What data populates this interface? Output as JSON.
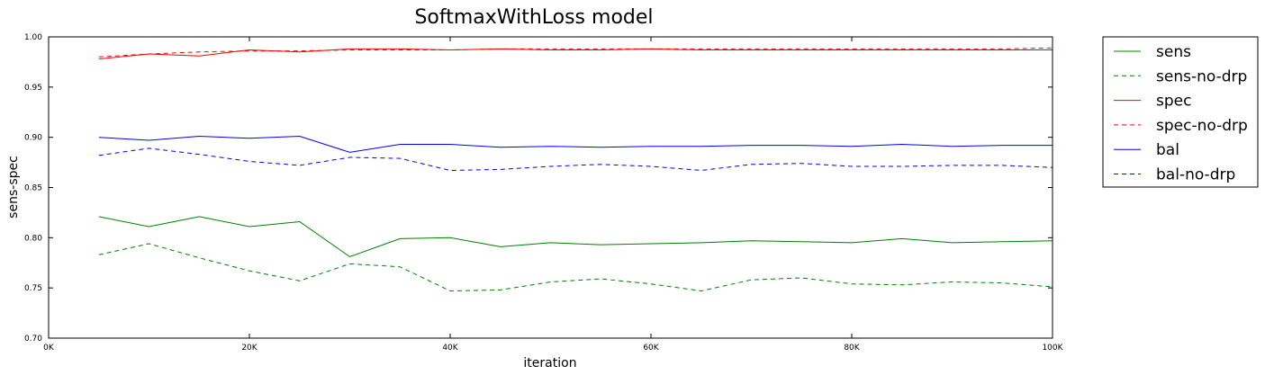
{
  "chart_data": {
    "type": "line",
    "title": "SoftmaxWithLoss model",
    "xlabel": "iteration",
    "ylabel": "sens-spec",
    "xlim": [
      0,
      100000
    ],
    "ylim": [
      0.7,
      1.0
    ],
    "x_ticks": [
      0,
      20000,
      40000,
      60000,
      80000,
      100000
    ],
    "x_tick_labels": [
      "0K",
      "20K",
      "40K",
      "60K",
      "80K",
      "100K"
    ],
    "y_ticks": [
      0.7,
      0.75,
      0.8,
      0.85,
      0.9,
      0.95,
      1.0
    ],
    "y_tick_labels": [
      "0.70",
      "0.75",
      "0.80",
      "0.85",
      "0.90",
      "0.95",
      "1.00"
    ],
    "grid": false,
    "legend_position": "outside-right",
    "x": [
      5000,
      10000,
      15000,
      20000,
      25000,
      30000,
      35000,
      40000,
      45000,
      50000,
      55000,
      60000,
      65000,
      70000,
      75000,
      80000,
      85000,
      90000,
      95000,
      100000
    ],
    "series": [
      {
        "name": "sens",
        "color": "#008000",
        "dash": "solid",
        "values": [
          0.821,
          0.811,
          0.821,
          0.811,
          0.816,
          0.781,
          0.799,
          0.8,
          0.791,
          0.795,
          0.793,
          0.794,
          0.795,
          0.797,
          0.796,
          0.795,
          0.799,
          0.795,
          0.796,
          0.797
        ]
      },
      {
        "name": "sens-no-drp",
        "color": "#008000",
        "dash": "dashed",
        "values": [
          0.783,
          0.794,
          0.78,
          0.767,
          0.757,
          0.774,
          0.771,
          0.747,
          0.748,
          0.756,
          0.759,
          0.754,
          0.747,
          0.758,
          0.76,
          0.754,
          0.753,
          0.756,
          0.755,
          0.751
        ]
      },
      {
        "name": "spec",
        "color": "#ff0000",
        "dash": "solid",
        "values": [
          0.978,
          0.983,
          0.981,
          0.987,
          0.985,
          0.988,
          0.988,
          0.987,
          0.988,
          0.987,
          0.987,
          0.988,
          0.987,
          0.987,
          0.987,
          0.987,
          0.987,
          0.987,
          0.987,
          0.987
        ]
      },
      {
        "name": "spec-no-drp",
        "color": "#ff0000",
        "dash": "dashed",
        "values": [
          0.98,
          0.983,
          0.985,
          0.986,
          0.986,
          0.987,
          0.987,
          0.987,
          0.988,
          0.988,
          0.988,
          0.988,
          0.988,
          0.988,
          0.988,
          0.988,
          0.988,
          0.988,
          0.988,
          0.989
        ]
      },
      {
        "name": "bal",
        "color": "#0000ff",
        "dash": "solid",
        "values": [
          0.9,
          0.897,
          0.901,
          0.899,
          0.901,
          0.885,
          0.893,
          0.893,
          0.89,
          0.891,
          0.89,
          0.891,
          0.891,
          0.892,
          0.892,
          0.891,
          0.893,
          0.891,
          0.892,
          0.892
        ]
      },
      {
        "name": "bal-no-drp",
        "color": "#0000ff",
        "dash": "dashed",
        "values": [
          0.882,
          0.889,
          0.883,
          0.876,
          0.872,
          0.88,
          0.879,
          0.867,
          0.868,
          0.871,
          0.873,
          0.871,
          0.867,
          0.873,
          0.874,
          0.871,
          0.871,
          0.872,
          0.872,
          0.87
        ]
      }
    ]
  }
}
